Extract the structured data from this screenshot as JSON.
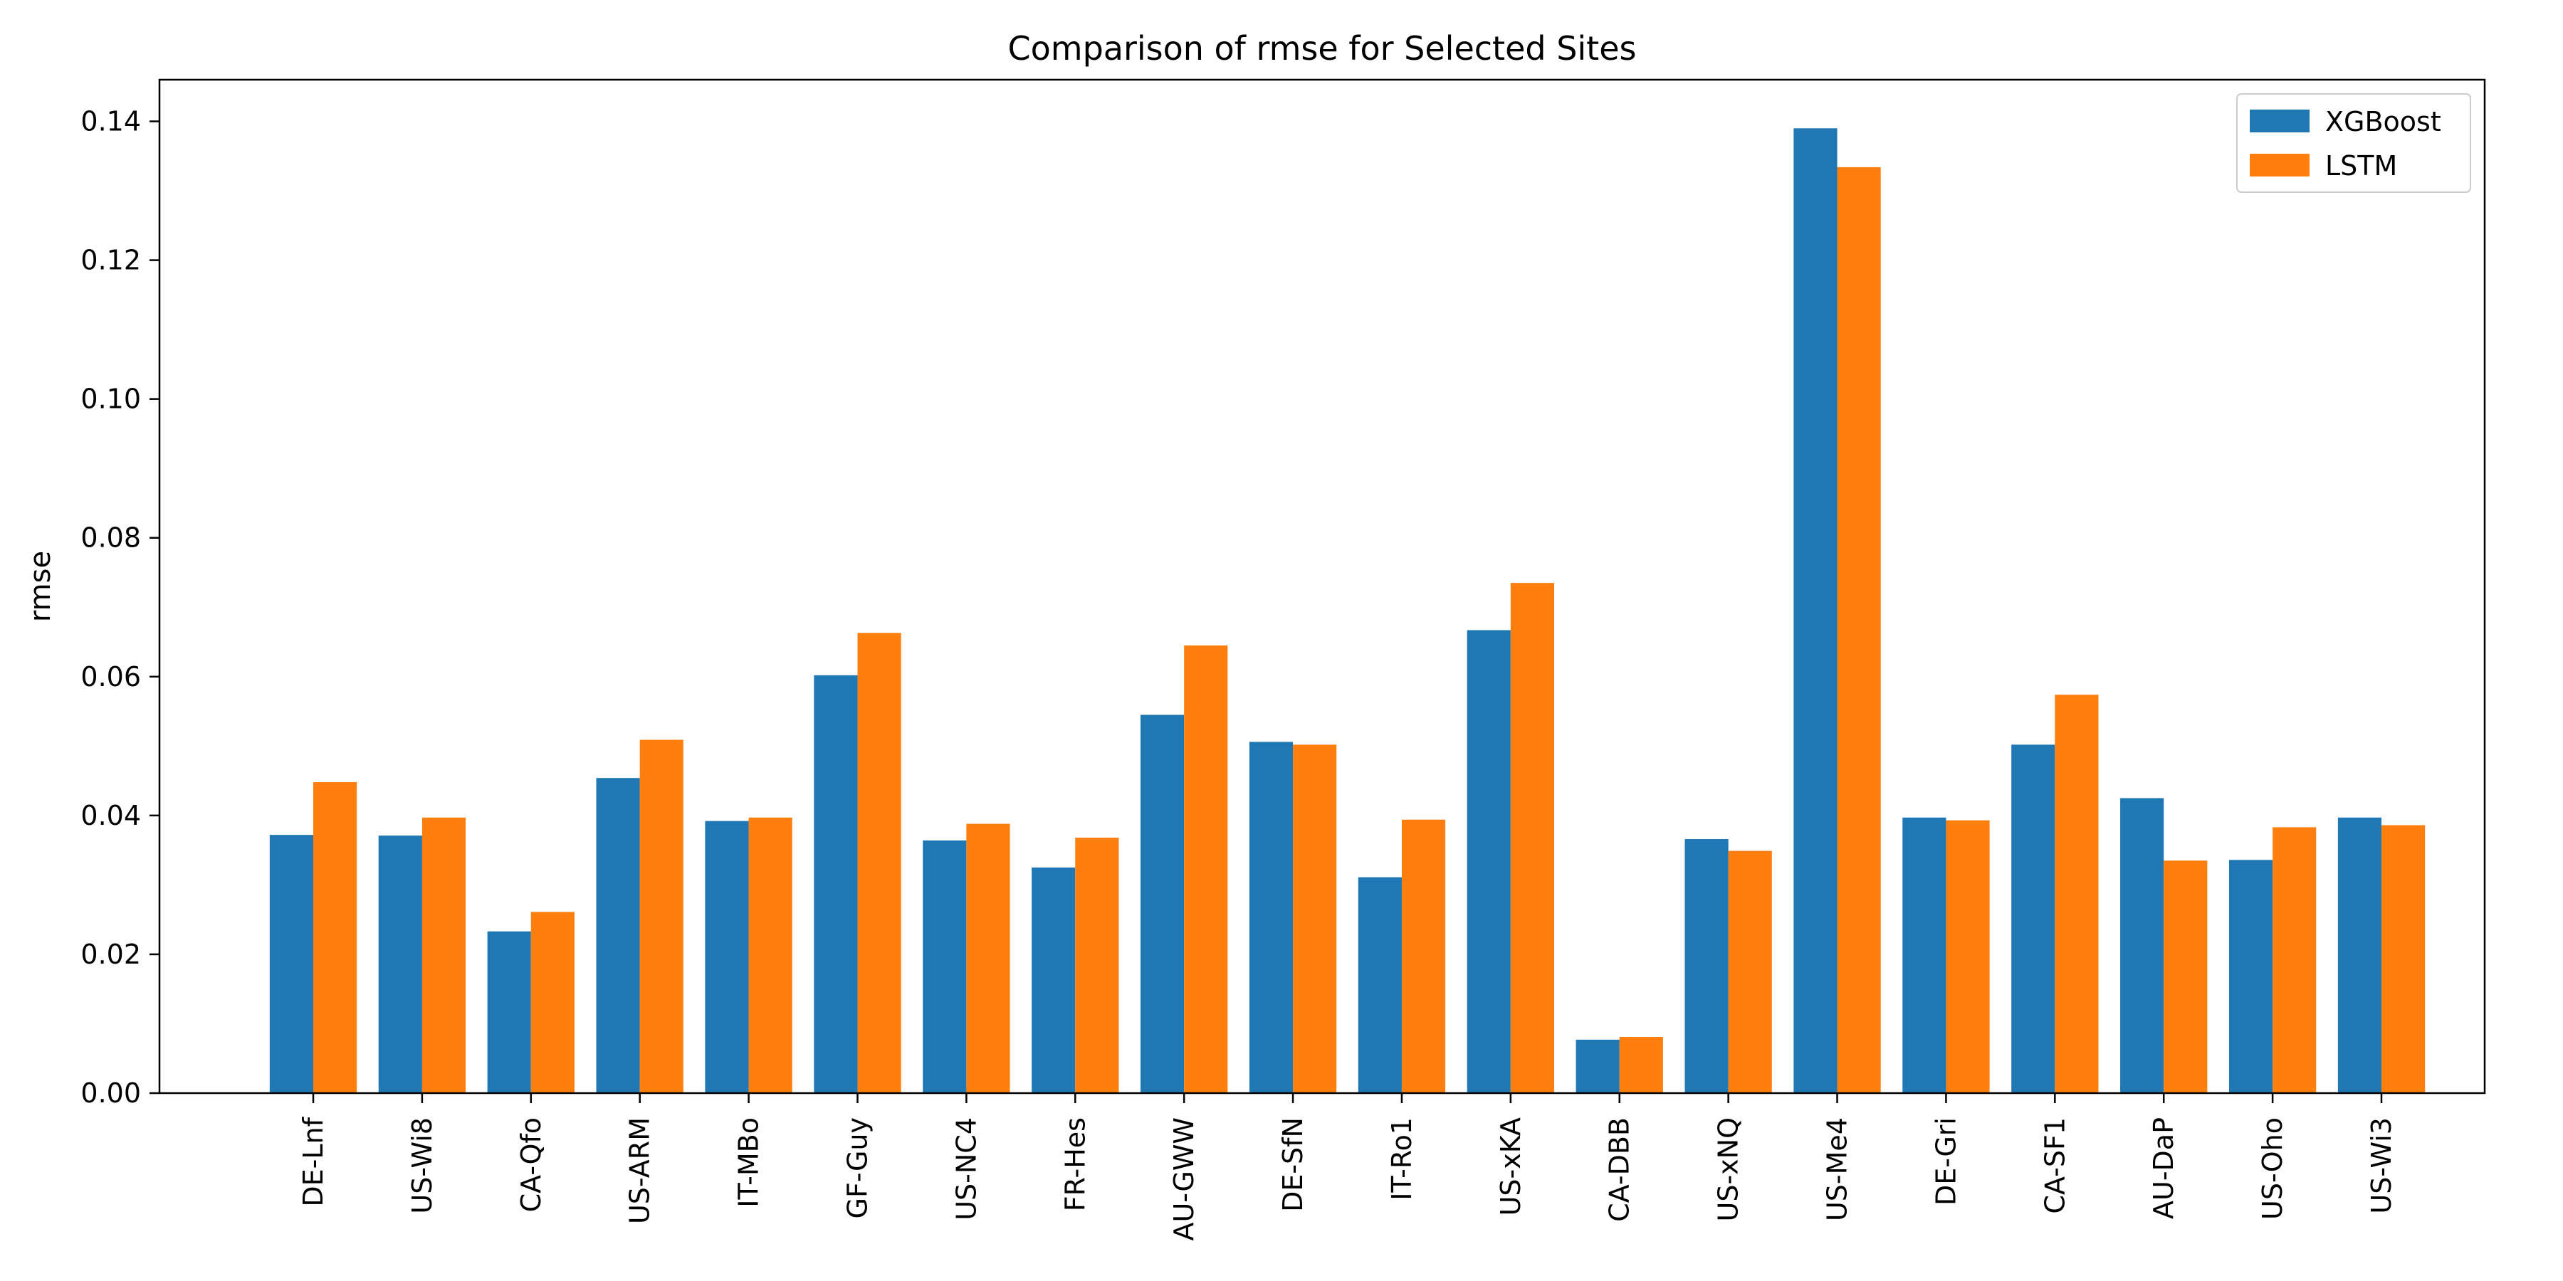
{
  "chart_data": {
    "type": "bar",
    "title": "Comparison of rmse for Selected Sites",
    "xlabel": "",
    "ylabel": "rmse",
    "ylim": [
      0,
      0.146
    ],
    "yticks": [
      0.0,
      0.02,
      0.04,
      0.06,
      0.08,
      0.1,
      0.12,
      0.14
    ],
    "ytick_labels": [
      "0.00",
      "0.02",
      "0.04",
      "0.06",
      "0.08",
      "0.10",
      "0.12",
      "0.14"
    ],
    "grid": false,
    "legend_position": "top-right",
    "categories": [
      "DE-Lnf",
      "US-Wi8",
      "CA-Qfo",
      "US-ARM",
      "IT-MBo",
      "GF-Guy",
      "US-NC4",
      "FR-Hes",
      "AU-GWW",
      "DE-SfN",
      "IT-Ro1",
      "US-xKA",
      "CA-DBB",
      "US-xNQ",
      "US-Me4",
      "DE-Gri",
      "CA-SF1",
      "AU-DaP",
      "US-Oho",
      "US-Wi3"
    ],
    "series": [
      {
        "name": "XGBoost",
        "color": "#1f77b4",
        "values": [
          0.0372,
          0.0371,
          0.0233,
          0.0454,
          0.0392,
          0.0602,
          0.0364,
          0.0325,
          0.0545,
          0.0506,
          0.0311,
          0.0667,
          0.0077,
          0.0366,
          0.139,
          0.0397,
          0.0502,
          0.0425,
          0.0336,
          0.0397
        ]
      },
      {
        "name": "LSTM",
        "color": "#ff7f0e",
        "values": [
          0.0448,
          0.0397,
          0.0261,
          0.0509,
          0.0397,
          0.0663,
          0.0388,
          0.0368,
          0.0645,
          0.0502,
          0.0394,
          0.0735,
          0.0081,
          0.0349,
          0.1334,
          0.0393,
          0.0574,
          0.0335,
          0.0383,
          0.0386
        ]
      }
    ]
  }
}
